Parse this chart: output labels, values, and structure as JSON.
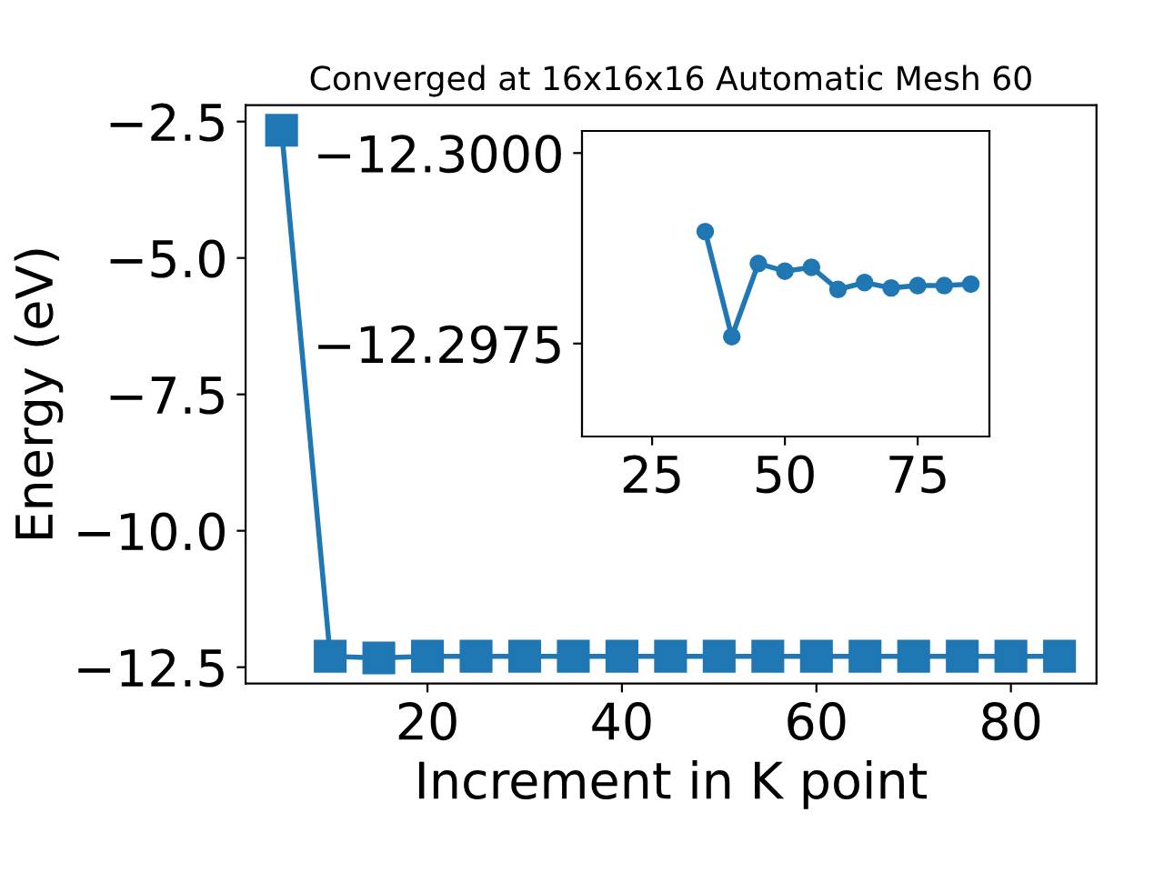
{
  "chart_data": [
    {
      "type": "line",
      "title": "Converged at 16x16x16 Automatic Mesh 60",
      "xlabel": "Increment in K point",
      "ylabel": "Energy (eV)",
      "x": [
        5,
        10,
        15,
        20,
        25,
        30,
        35,
        40,
        45,
        50,
        55,
        60,
        65,
        70,
        75,
        80,
        85
      ],
      "series": [
        {
          "color": "#1f77b4",
          "values": [
            -2.66,
            -12.3,
            -12.33,
            -12.3,
            -12.3,
            -12.3,
            -12.3,
            -12.3,
            -12.3,
            -12.3,
            -12.3,
            -12.3,
            -12.3,
            -12.3,
            -12.3,
            -12.3,
            -12.3
          ]
        }
      ],
      "xlim": [
        1.3,
        88.8
      ],
      "ylim": [
        -12.8,
        -2.2
      ],
      "xticks": [
        20,
        40,
        60,
        80
      ],
      "yticks": [
        {
          "value": -2.5,
          "label": "−2.5"
        },
        {
          "value": -5.0,
          "label": "−5.0"
        },
        {
          "value": -7.5,
          "label": "−7.5"
        },
        {
          "value": -10.0,
          "label": "−10.0"
        },
        {
          "value": -12.5,
          "label": "−12.5"
        }
      ],
      "marker": "square",
      "line_style": "solid",
      "grid": false,
      "legend": false
    },
    {
      "type": "line",
      "x": [
        35,
        40,
        45,
        50,
        55,
        60,
        65,
        70,
        75,
        80,
        85
      ],
      "series": [
        {
          "color": "#1f77b4",
          "values": [
            -12.29897,
            -12.29759,
            -12.29855,
            -12.29845,
            -12.2985,
            -12.29821,
            -12.2983,
            -12.29823,
            -12.29826,
            -12.29826,
            -12.29828
          ]
        }
      ],
      "xlim": [
        11.8,
        88.5
      ],
      "ylim": [
        -12.29628,
        -12.30029
      ],
      "xticks": [
        25,
        50,
        75
      ],
      "yticks": [
        {
          "value": -12.3,
          "label": "−12.3000"
        },
        {
          "value": -12.2975,
          "label": "−12.2975"
        }
      ],
      "marker": "circle",
      "line_style": "solid",
      "grid": false,
      "legend": false
    }
  ]
}
